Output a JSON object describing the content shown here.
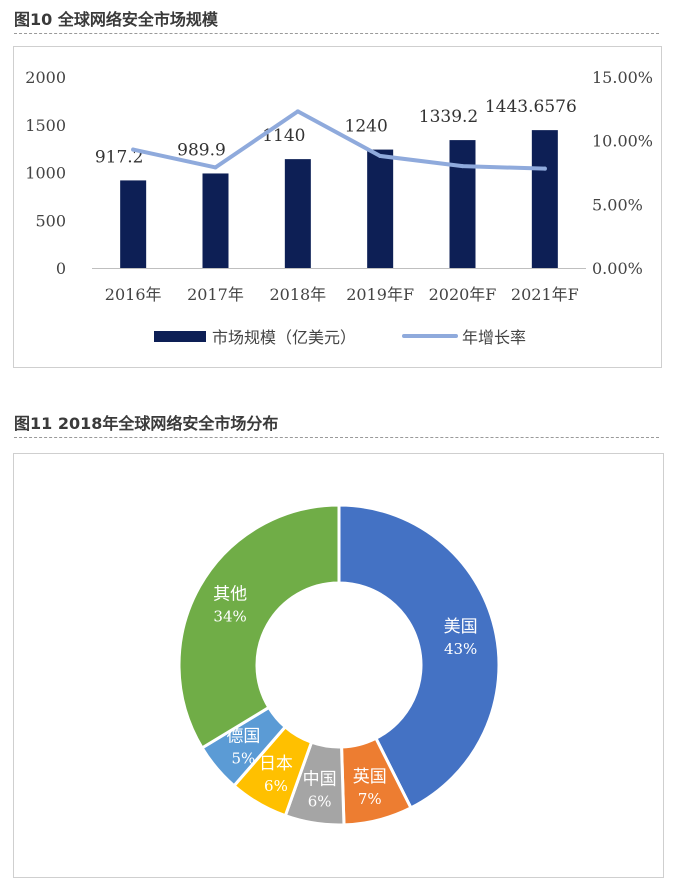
{
  "figure10": {
    "title": "图10 全球网络安全市场规模",
    "chart_data": {
      "type": "bar",
      "categories": [
        "2016年",
        "2017年",
        "2018年",
        "2019年F",
        "2020年F",
        "2021年F"
      ],
      "series": [
        {
          "name": "市场规模（亿美元）",
          "type": "bar",
          "axis": "left",
          "values": [
            917.2,
            989.9,
            1140,
            1240,
            1339.2,
            1443.6576
          ],
          "labels": [
            "917.2",
            "989.9",
            "1140",
            "1240",
            "1339.2",
            "1443.6576"
          ],
          "color": "#0d1f55"
        },
        {
          "name": "年增长率",
          "type": "line",
          "axis": "right",
          "values": [
            9.3,
            7.9,
            12.3,
            8.8,
            8.0,
            7.8
          ],
          "color": "#8faadc"
        }
      ],
      "left_axis": {
        "ylim": [
          0,
          2000
        ],
        "ticks": [
          "0",
          "500",
          "1000",
          "1500",
          "2000"
        ]
      },
      "right_axis": {
        "ylim": [
          0,
          15
        ],
        "ticks": [
          "0.00%",
          "5.00%",
          "10.00%",
          "15.00%"
        ]
      },
      "legend": "bottom"
    }
  },
  "figure11": {
    "title": "图11 2018年全球网络安全市场分布",
    "chart_data": {
      "type": "pie",
      "style": "donut",
      "slices": [
        {
          "label": "美国",
          "value": 43,
          "pct_label": "43%",
          "color": "#4472c4"
        },
        {
          "label": "英国",
          "value": 7,
          "pct_label": "7%",
          "color": "#ed7d31"
        },
        {
          "label": "中国",
          "value": 6,
          "pct_label": "6%",
          "color": "#a5a5a5"
        },
        {
          "label": "日本",
          "value": 6,
          "pct_label": "6%",
          "color": "#ffc000"
        },
        {
          "label": "德国",
          "value": 5,
          "pct_label": "5%",
          "color": "#5b9bd5"
        },
        {
          "label": "其他",
          "value": 34,
          "pct_label": "34%",
          "color": "#70ad47"
        }
      ]
    }
  }
}
